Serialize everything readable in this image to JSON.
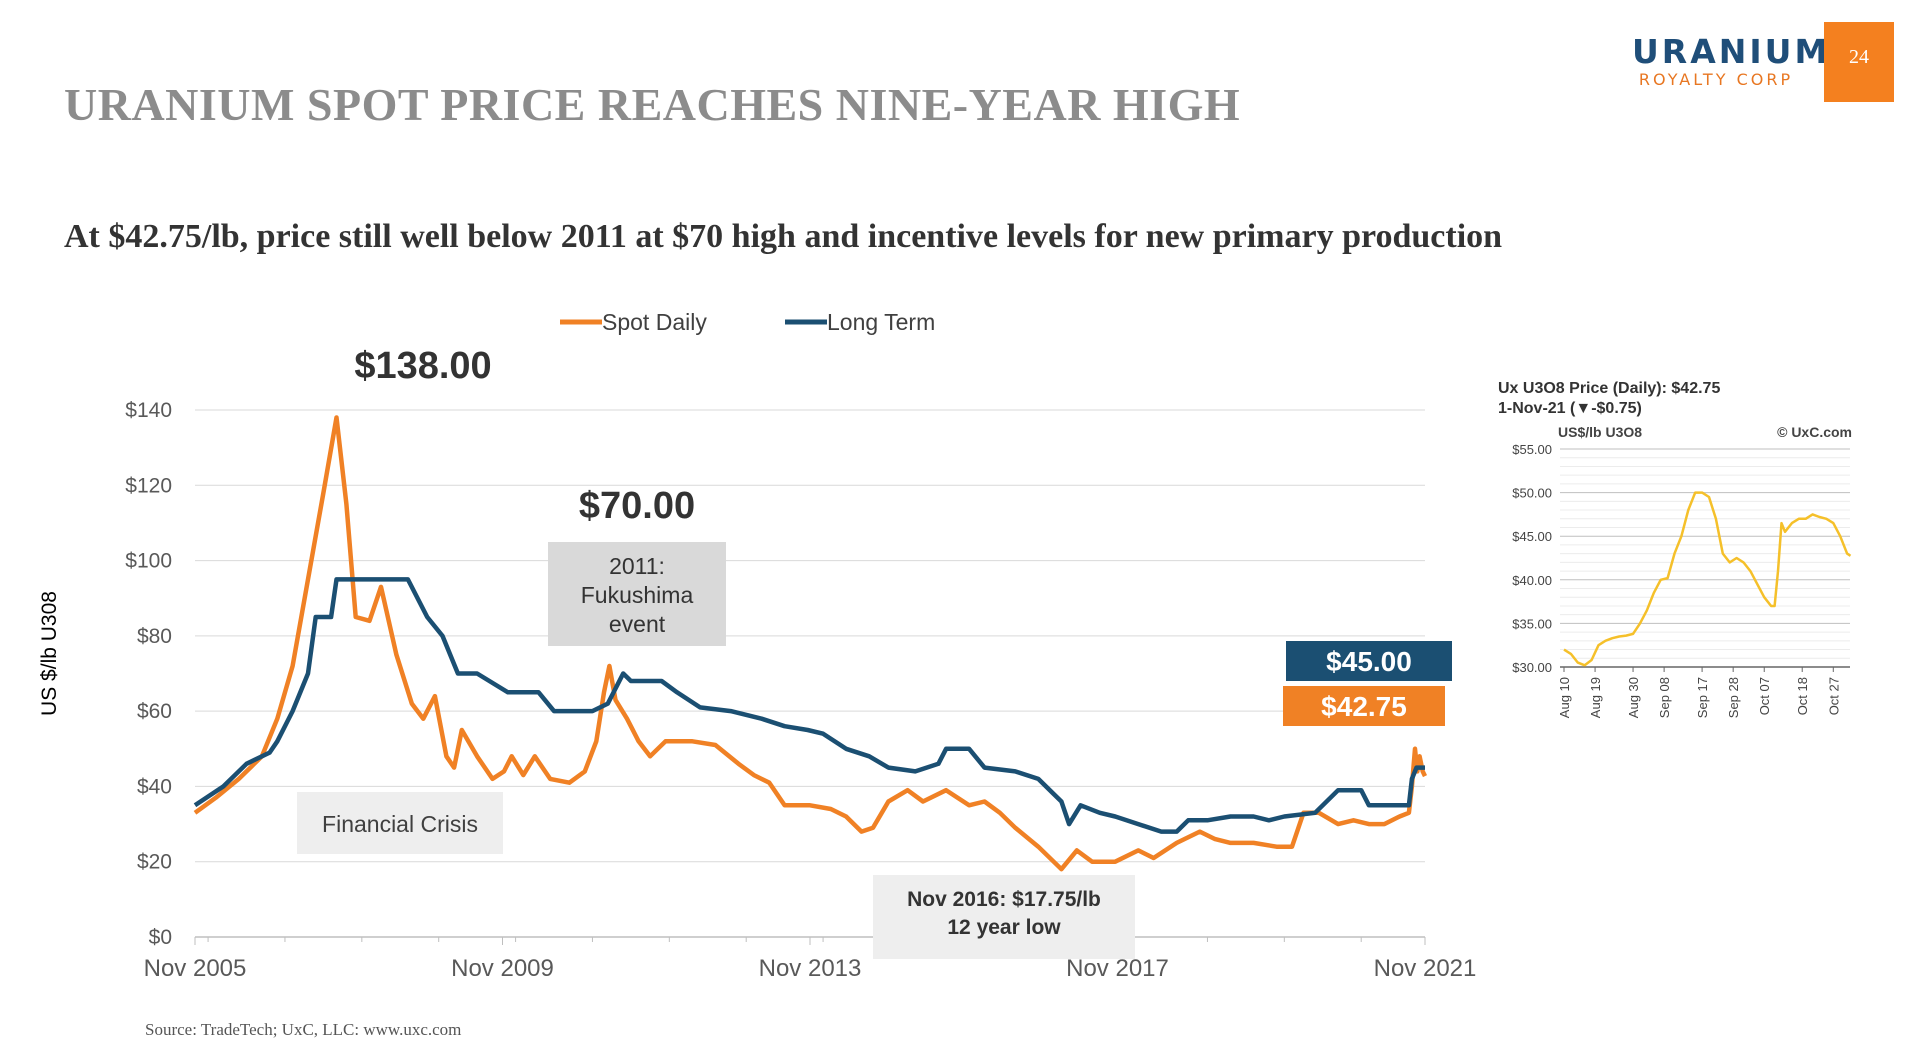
{
  "page": {
    "title": "URANIUM SPOT PRICE REACHES NINE-YEAR HIGH",
    "subtitle": "At $42.75/lb, price still well below 2011 at $70 high and incentive levels for new primary production",
    "page_number": "24",
    "source": "Source: TradeTech; UxC, LLC: www.uxc.com"
  },
  "logo": {
    "main": "URANIUM",
    "sub": "ROYALTY CORP",
    "main_color": "#1f4e79",
    "sub_color": "#e87722"
  },
  "chart_data": [
    {
      "type": "line",
      "ylabel": "US $/lb U308",
      "ylim": [
        0,
        140
      ],
      "yticks": [
        0,
        20,
        40,
        60,
        80,
        100,
        120,
        140
      ],
      "ytick_labels": [
        "$0",
        "$20",
        "$40",
        "$60",
        "$80",
        "$100",
        "$120",
        "$140"
      ],
      "xlim": [
        2005.83,
        2021.83
      ],
      "xticks": [
        2005.83,
        2009.83,
        2013.83,
        2017.83,
        2021.83
      ],
      "xtick_labels": [
        "Nov 2005",
        "Nov 2009",
        "Nov 2013",
        "Nov 2017",
        "Nov 2021"
      ],
      "grid": true,
      "legend": "top-center",
      "series": [
        {
          "name": "Spot Daily",
          "color": "#f08125",
          "points": [
            [
              2005.83,
              33
            ],
            [
              2006.1,
              37
            ],
            [
              2006.4,
              42
            ],
            [
              2006.7,
              48
            ],
            [
              2006.9,
              58
            ],
            [
              2007.1,
              72
            ],
            [
              2007.3,
              95
            ],
            [
              2007.5,
              118
            ],
            [
              2007.67,
              138
            ],
            [
              2007.8,
              115
            ],
            [
              2007.92,
              85
            ],
            [
              2008.1,
              84
            ],
            [
              2008.25,
              93
            ],
            [
              2008.45,
              75
            ],
            [
              2008.65,
              62
            ],
            [
              2008.8,
              58
            ],
            [
              2008.95,
              64
            ],
            [
              2009.1,
              48
            ],
            [
              2009.2,
              45
            ],
            [
              2009.3,
              55
            ],
            [
              2009.5,
              48
            ],
            [
              2009.7,
              42
            ],
            [
              2009.85,
              44
            ],
            [
              2009.95,
              48
            ],
            [
              2010.1,
              43
            ],
            [
              2010.25,
              48
            ],
            [
              2010.45,
              42
            ],
            [
              2010.7,
              41
            ],
            [
              2010.9,
              44
            ],
            [
              2011.05,
              52
            ],
            [
              2011.15,
              65
            ],
            [
              2011.22,
              72
            ],
            [
              2011.3,
              63
            ],
            [
              2011.45,
              58
            ],
            [
              2011.6,
              52
            ],
            [
              2011.75,
              48
            ],
            [
              2011.95,
              52
            ],
            [
              2012.3,
              52
            ],
            [
              2012.6,
              51
            ],
            [
              2012.9,
              46
            ],
            [
              2013.1,
              43
            ],
            [
              2013.3,
              41
            ],
            [
              2013.5,
              35
            ],
            [
              2013.83,
              35
            ],
            [
              2014.1,
              34
            ],
            [
              2014.3,
              32
            ],
            [
              2014.5,
              28
            ],
            [
              2014.65,
              29
            ],
            [
              2014.85,
              36
            ],
            [
              2015.1,
              39
            ],
            [
              2015.3,
              36
            ],
            [
              2015.6,
              39
            ],
            [
              2015.9,
              35
            ],
            [
              2016.1,
              36
            ],
            [
              2016.3,
              33
            ],
            [
              2016.5,
              29
            ],
            [
              2016.8,
              24
            ],
            [
              2017.0,
              20
            ],
            [
              2017.1,
              18
            ],
            [
              2017.3,
              23
            ],
            [
              2017.5,
              20
            ],
            [
              2017.8,
              20
            ],
            [
              2018.1,
              23
            ],
            [
              2018.3,
              21
            ],
            [
              2018.6,
              25
            ],
            [
              2018.9,
              28
            ],
            [
              2019.1,
              26
            ],
            [
              2019.3,
              25
            ],
            [
              2019.6,
              25
            ],
            [
              2019.9,
              24
            ],
            [
              2020.1,
              24
            ],
            [
              2020.25,
              33
            ],
            [
              2020.45,
              33
            ],
            [
              2020.7,
              30
            ],
            [
              2020.9,
              31
            ],
            [
              2021.1,
              30
            ],
            [
              2021.3,
              30
            ],
            [
              2021.5,
              32
            ],
            [
              2021.62,
              33
            ],
            [
              2021.66,
              40
            ],
            [
              2021.7,
              50
            ],
            [
              2021.73,
              44
            ],
            [
              2021.76,
              48
            ],
            [
              2021.8,
              44
            ],
            [
              2021.83,
              42.75
            ]
          ]
        },
        {
          "name": "Long Term",
          "color": "#1b4f72",
          "points": [
            [
              2005.83,
              35
            ],
            [
              2006.2,
              40
            ],
            [
              2006.5,
              46
            ],
            [
              2006.8,
              49
            ],
            [
              2006.9,
              52
            ],
            [
              2007.1,
              60
            ],
            [
              2007.3,
              70
            ],
            [
              2007.4,
              85
            ],
            [
              2007.6,
              85
            ],
            [
              2007.67,
              95
            ],
            [
              2008.1,
              95
            ],
            [
              2008.6,
              95
            ],
            [
              2008.85,
              85
            ],
            [
              2009.05,
              80
            ],
            [
              2009.25,
              70
            ],
            [
              2009.5,
              70
            ],
            [
              2009.9,
              65
            ],
            [
              2010.3,
              65
            ],
            [
              2010.5,
              60
            ],
            [
              2011.0,
              60
            ],
            [
              2011.2,
              62
            ],
            [
              2011.4,
              70
            ],
            [
              2011.5,
              68
            ],
            [
              2011.9,
              68
            ],
            [
              2012.1,
              65
            ],
            [
              2012.4,
              61
            ],
            [
              2012.8,
              60
            ],
            [
              2013.2,
              58
            ],
            [
              2013.5,
              56
            ],
            [
              2013.8,
              55
            ],
            [
              2014.0,
              54
            ],
            [
              2014.3,
              50
            ],
            [
              2014.6,
              48
            ],
            [
              2014.85,
              45
            ],
            [
              2015.2,
              44
            ],
            [
              2015.5,
              46
            ],
            [
              2015.6,
              50
            ],
            [
              2015.9,
              50
            ],
            [
              2016.1,
              45
            ],
            [
              2016.5,
              44
            ],
            [
              2016.8,
              42
            ],
            [
              2017.0,
              38
            ],
            [
              2017.1,
              36
            ],
            [
              2017.2,
              30
            ],
            [
              2017.35,
              35
            ],
            [
              2017.6,
              33
            ],
            [
              2017.8,
              32
            ],
            [
              2018.1,
              30
            ],
            [
              2018.4,
              28
            ],
            [
              2018.6,
              28
            ],
            [
              2018.75,
              31
            ],
            [
              2019.0,
              31
            ],
            [
              2019.3,
              32
            ],
            [
              2019.6,
              32
            ],
            [
              2019.8,
              31
            ],
            [
              2020.0,
              32
            ],
            [
              2020.4,
              33
            ],
            [
              2020.7,
              39
            ],
            [
              2021.0,
              39
            ],
            [
              2021.1,
              35
            ],
            [
              2021.4,
              35
            ],
            [
              2021.62,
              35
            ],
            [
              2021.66,
              42
            ],
            [
              2021.72,
              45
            ],
            [
              2021.83,
              45
            ]
          ]
        }
      ],
      "annotations": {
        "peak_label": "$138.00",
        "high_2011_label": "$70.00",
        "fukushima_box": "2011:\nFukushima\nevent",
        "financial_crisis_box": "Financial Crisis",
        "low_box": "Nov 2016: $17.75/lb\n12 year low",
        "long_term_value_box": "$45.00",
        "spot_value_box": "$42.75",
        "box_fill_gray": "#d9d9d9",
        "box_fill_light": "#eeeeee"
      }
    },
    {
      "type": "line",
      "title": "Ux U3O8 Price (Daily): $42.75",
      "subtitle": "1-Nov-21 (▼-$0.75)",
      "unit_label": "US$/lb U3O8",
      "credit": "© UxC.com",
      "ylim": [
        30,
        55
      ],
      "yticks": [
        30,
        35,
        40,
        45,
        50,
        55
      ],
      "ytick_labels": [
        "$30.00",
        "$35.00",
        "$40.00",
        "$45.00",
        "$50.00",
        "$55.00"
      ],
      "xlim": [
        0,
        84
      ],
      "xticks": [
        0,
        9,
        20,
        29,
        40,
        49,
        58,
        69,
        78
      ],
      "xtick_labels": [
        "Aug 10",
        "Aug 19",
        "Aug 30",
        "Sep 08",
        "Sep 17",
        "Sep 28",
        "Oct 07",
        "Oct 18",
        "Oct 27"
      ],
      "grid": true,
      "series": [
        {
          "color": "#f5c02a",
          "points": [
            [
              0,
              32
            ],
            [
              2,
              31.5
            ],
            [
              4,
              30.5
            ],
            [
              6,
              30.2
            ],
            [
              8,
              30.8
            ],
            [
              10,
              32.5
            ],
            [
              12,
              33
            ],
            [
              14,
              33.3
            ],
            [
              16,
              33.5
            ],
            [
              18,
              33.6
            ],
            [
              20,
              33.8
            ],
            [
              22,
              35
            ],
            [
              24,
              36.5
            ],
            [
              26,
              38.5
            ],
            [
              28,
              40
            ],
            [
              30,
              40.2
            ],
            [
              32,
              43
            ],
            [
              34,
              45
            ],
            [
              36,
              48
            ],
            [
              38,
              50
            ],
            [
              40,
              50
            ],
            [
              42,
              49.5
            ],
            [
              44,
              47
            ],
            [
              46,
              43
            ],
            [
              48,
              42
            ],
            [
              50,
              42.5
            ],
            [
              52,
              42
            ],
            [
              54,
              41
            ],
            [
              56,
              39.5
            ],
            [
              58,
              38
            ],
            [
              60,
              37
            ],
            [
              61,
              37
            ],
            [
              62,
              41
            ],
            [
              63,
              46.5
            ],
            [
              64,
              45.5
            ],
            [
              66,
              46.5
            ],
            [
              68,
              47
            ],
            [
              70,
              47
            ],
            [
              72,
              47.5
            ],
            [
              74,
              47.2
            ],
            [
              76,
              47
            ],
            [
              78,
              46.5
            ],
            [
              80,
              45
            ],
            [
              82,
              43
            ],
            [
              83,
              42.75
            ]
          ]
        }
      ]
    }
  ]
}
